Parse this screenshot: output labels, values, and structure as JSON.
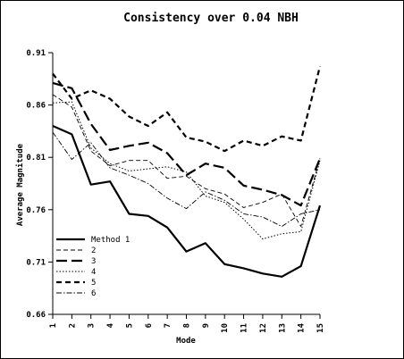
{
  "chart_data": {
    "type": "line",
    "title": "Consistency over 0.04 NBH",
    "xlabel": "Mode",
    "ylabel": "Average Magnitude",
    "x": [
      1,
      2,
      3,
      4,
      5,
      6,
      7,
      8,
      9,
      10,
      11,
      12,
      13,
      14,
      15
    ],
    "xlim": [
      1,
      15
    ],
    "ylim": [
      0.66,
      0.91
    ],
    "y_ticks": [
      "0.91",
      "0.86",
      "0.81",
      "0.76",
      "0.71",
      "0.66"
    ],
    "y_tick_values": [
      0.91,
      0.86,
      0.81,
      0.76,
      0.71,
      0.66
    ],
    "grid": false,
    "legend_position": "bottom-left",
    "series": [
      {
        "name": "Method 1",
        "style": "solid-thick",
        "values": [
          0.84,
          0.832,
          0.784,
          0.787,
          0.756,
          0.754,
          0.743,
          0.72,
          0.728,
          0.708,
          0.704,
          0.699,
          0.696,
          0.706,
          0.764
        ]
      },
      {
        "name": "2",
        "style": "dash-thin",
        "values": [
          0.87,
          0.858,
          0.816,
          0.802,
          0.807,
          0.807,
          0.79,
          0.792,
          0.78,
          0.775,
          0.762,
          0.767,
          0.775,
          0.744,
          0.809
        ]
      },
      {
        "name": "3",
        "style": "dash-long-thick",
        "values": [
          0.881,
          0.876,
          0.842,
          0.817,
          0.821,
          0.824,
          0.814,
          0.793,
          0.804,
          0.8,
          0.783,
          0.779,
          0.774,
          0.764,
          0.809
        ]
      },
      {
        "name": "4",
        "style": "dot",
        "values": [
          0.862,
          0.863,
          0.819,
          0.804,
          0.797,
          0.799,
          0.801,
          0.796,
          0.773,
          0.767,
          0.751,
          0.732,
          0.737,
          0.739,
          0.807
        ]
      },
      {
        "name": "5",
        "style": "dash-medium-thick",
        "values": [
          0.89,
          0.866,
          0.874,
          0.866,
          0.849,
          0.84,
          0.853,
          0.829,
          0.825,
          0.816,
          0.826,
          0.821,
          0.83,
          0.826,
          0.897
        ]
      },
      {
        "name": "6",
        "style": "dash-dot",
        "values": [
          0.834,
          0.808,
          0.824,
          0.8,
          0.793,
          0.785,
          0.771,
          0.761,
          0.777,
          0.769,
          0.756,
          0.753,
          0.744,
          0.756,
          0.76
        ]
      }
    ],
    "colors": {
      "line": "#000000",
      "background": "#ffffff"
    }
  }
}
